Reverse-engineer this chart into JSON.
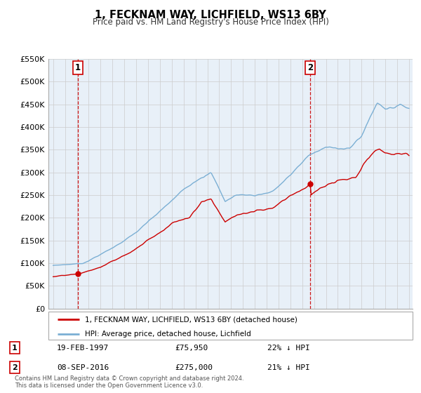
{
  "title": "1, FECKNAM WAY, LICHFIELD, WS13 6BY",
  "subtitle": "Price paid vs. HM Land Registry's House Price Index (HPI)",
  "legend_label_red": "1, FECKNAM WAY, LICHFIELD, WS13 6BY (detached house)",
  "legend_label_blue": "HPI: Average price, detached house, Lichfield",
  "annotation1_date": "19-FEB-1997",
  "annotation1_price": "£75,950",
  "annotation1_hpi": "22% ↓ HPI",
  "annotation2_date": "08-SEP-2016",
  "annotation2_price": "£275,000",
  "annotation2_hpi": "21% ↓ HPI",
  "footer": "Contains HM Land Registry data © Crown copyright and database right 2024.\nThis data is licensed under the Open Government Licence v3.0.",
  "sale1_year": 1997.12,
  "sale1_value": 75950,
  "sale2_year": 2016.67,
  "sale2_value": 275000,
  "red_line_color": "#cc0000",
  "blue_line_color": "#7bafd4",
  "dashed_line_color": "#cc0000",
  "grid_color": "#cccccc",
  "plot_bg_color": "#e8f0f8",
  "ylim_min": 0,
  "ylim_max": 550000,
  "yticks": [
    0,
    50000,
    100000,
    150000,
    200000,
    250000,
    300000,
    350000,
    400000,
    450000,
    500000,
    550000
  ],
  "ytick_labels": [
    "£0",
    "£50K",
    "£100K",
    "£150K",
    "£200K",
    "£250K",
    "£300K",
    "£350K",
    "£400K",
    "£450K",
    "£500K",
    "£550K"
  ]
}
